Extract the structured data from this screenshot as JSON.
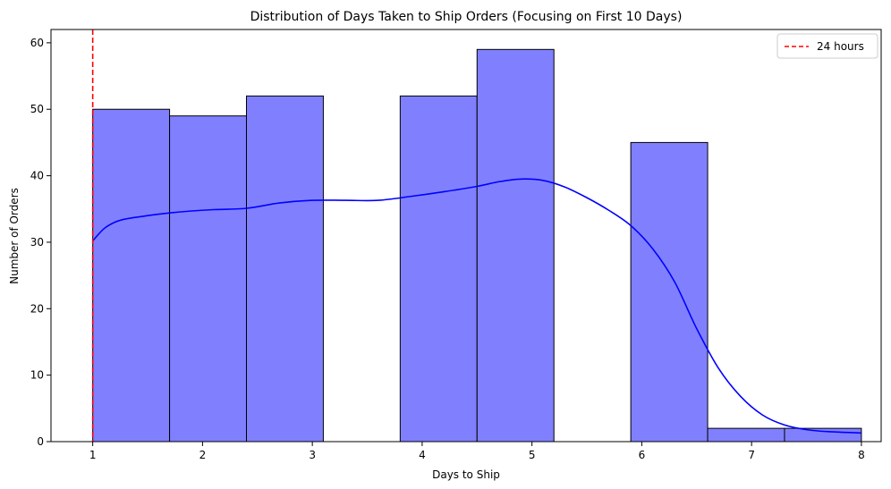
{
  "chart_data": {
    "type": "bar",
    "title": "Distribution of Days Taken to Ship Orders (Focusing on First 10 Days)",
    "xlabel": "Days to Ship",
    "ylabel": "Number of Orders",
    "xlim": [
      0.62,
      8.18
    ],
    "ylim": [
      0,
      62
    ],
    "xticks": [
      1,
      2,
      3,
      4,
      5,
      6,
      7,
      8
    ],
    "yticks": [
      0,
      10,
      20,
      30,
      40,
      50,
      60
    ],
    "grid": false,
    "bins": [
      {
        "x0": 1.0,
        "x1": 1.7,
        "value": 50
      },
      {
        "x0": 1.7,
        "x1": 2.4,
        "value": 49
      },
      {
        "x0": 2.4,
        "x1": 3.1,
        "value": 52
      },
      {
        "x0": 3.1,
        "x1": 3.8,
        "value": 0
      },
      {
        "x0": 3.8,
        "x1": 4.5,
        "value": 52
      },
      {
        "x0": 4.5,
        "x1": 5.2,
        "value": 59
      },
      {
        "x0": 5.2,
        "x1": 5.9,
        "value": 0
      },
      {
        "x0": 5.9,
        "x1": 6.6,
        "value": 45
      },
      {
        "x0": 6.6,
        "x1": 7.3,
        "value": 2
      },
      {
        "x0": 7.3,
        "x1": 8.0,
        "value": 2
      }
    ],
    "bar_color": "#8080ff",
    "bar_edge_color": "#000000",
    "kde": {
      "color": "#0000ff",
      "x": [
        1.0,
        1.1,
        1.2,
        1.3,
        1.5,
        1.7,
        1.9,
        2.1,
        2.4,
        2.7,
        3.0,
        3.3,
        3.6,
        3.9,
        4.2,
        4.5,
        4.7,
        4.9,
        5.1,
        5.3,
        5.5,
        5.7,
        5.9,
        6.1,
        6.3,
        6.5,
        6.7,
        6.9,
        7.1,
        7.3,
        7.5,
        7.7,
        8.0
      ],
      "y": [
        30.2,
        32.0,
        33.0,
        33.5,
        34.0,
        34.4,
        34.7,
        34.9,
        35.1,
        35.9,
        36.3,
        36.3,
        36.3,
        36.9,
        37.6,
        38.4,
        39.1,
        39.5,
        39.3,
        38.3,
        36.7,
        34.8,
        32.5,
        29.0,
        24.0,
        17.0,
        11.0,
        6.8,
        4.0,
        2.5,
        1.8,
        1.5,
        1.3
      ]
    },
    "reference_line": {
      "x": 1.0,
      "label": "24 hours",
      "color": "#ff0000"
    },
    "legend": {
      "position": "top-right",
      "entries": [
        "24 hours"
      ]
    }
  }
}
